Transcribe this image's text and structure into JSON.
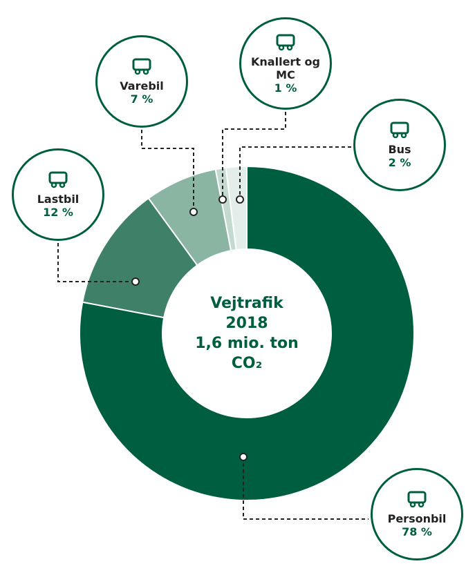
{
  "chart_data": {
    "type": "donut",
    "center_text": [
      "Vejtrafik",
      "2018",
      "1,6 mio. ton",
      "CO₂"
    ],
    "categories": [
      "Personbil",
      "Lastbil",
      "Varebil",
      "Knallert og MC",
      "Bus"
    ],
    "values": [
      78,
      12,
      7,
      1,
      2
    ],
    "value_labels": [
      "78 %",
      "12 %",
      "7 %",
      "1 %",
      "2 %"
    ],
    "colors": [
      "#005e40",
      "#3f8068",
      "#8ab5a3",
      "#c4dad0",
      "#e3eeea"
    ]
  }
}
